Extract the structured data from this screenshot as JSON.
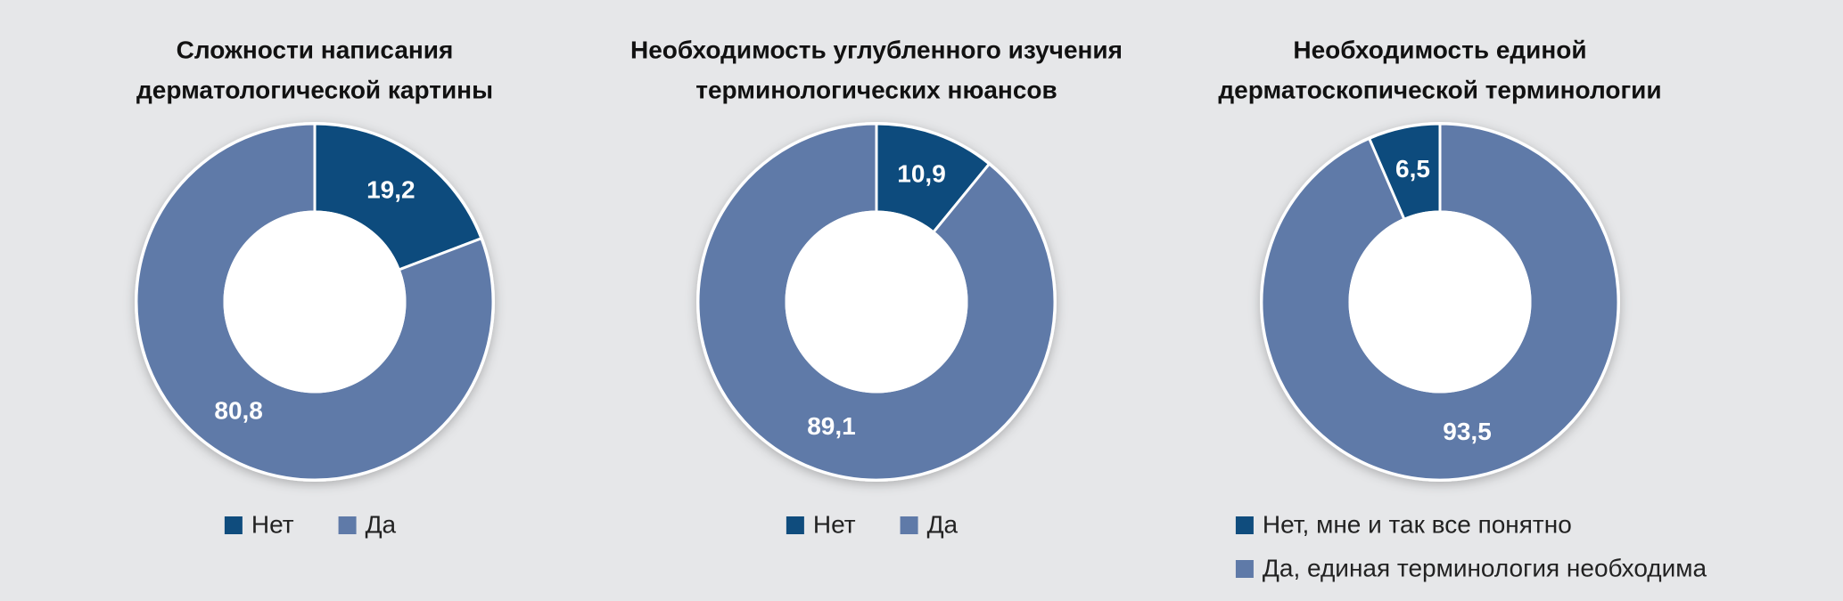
{
  "chart_data": [
    {
      "type": "pie",
      "title": "Сложности написания дерматологической картины",
      "title_lines": [
        "Сложности написания",
        "дерматологической картины"
      ],
      "categories": [
        "Нет",
        "Да"
      ],
      "values": [
        19.2,
        80.8
      ],
      "value_labels": [
        "19,2",
        "80,8"
      ],
      "colors": [
        "#0f4c7d",
        "#5f7aa8"
      ],
      "counterclock": false,
      "donut": true
    },
    {
      "type": "pie",
      "title": "Необходимость углубленного изучения терминологических нюансов",
      "title_lines": [
        "Необходимость углубленного изучения",
        "терминологических нюансов"
      ],
      "categories": [
        "Нет",
        "Да"
      ],
      "values": [
        10.9,
        89.1
      ],
      "value_labels": [
        "10,9",
        "89,1"
      ],
      "colors": [
        "#0f4c7d",
        "#5f7aa8"
      ],
      "counterclock": false,
      "donut": true
    },
    {
      "type": "pie",
      "title": "Необходимость единой дерматоскопической терминологии",
      "title_lines": [
        "Необходимость единой",
        "дерматоскопической терминологии"
      ],
      "categories": [
        "Нет, мне и так все понятно",
        "Да, единая терминология необходима"
      ],
      "values": [
        6.5,
        93.5
      ],
      "value_labels": [
        "6,5",
        "93,5"
      ],
      "colors": [
        "#0f4c7d",
        "#5f7aa8"
      ],
      "counterclock": true,
      "donut": true
    }
  ]
}
